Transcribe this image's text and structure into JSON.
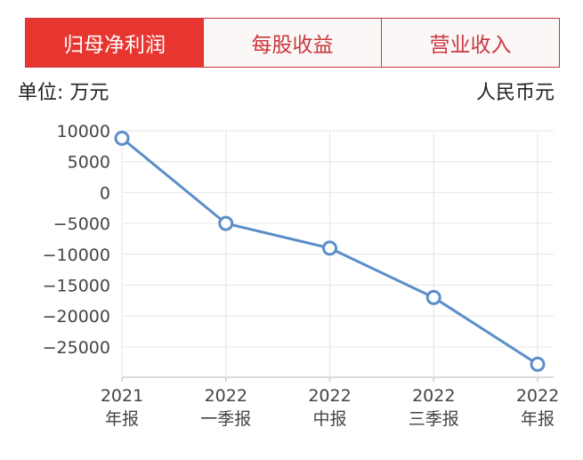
{
  "tabs": [
    {
      "label": "归母净利润",
      "active": true
    },
    {
      "label": "每股收益",
      "active": false
    },
    {
      "label": "营业收入",
      "active": false
    }
  ],
  "unit_label": "单位: 万元",
  "currency_label": "人民币元",
  "colors": {
    "accent": "#e7352f",
    "tab_border": "#c9383f",
    "line": "#5b8ec9",
    "grid": "#e6e6e6"
  },
  "chart_data": {
    "type": "line",
    "categories": [
      [
        "2021",
        "年报"
      ],
      [
        "2022",
        "一季报"
      ],
      [
        "2022",
        "中报"
      ],
      [
        "2022",
        "三季报"
      ],
      [
        "2022",
        "年报"
      ]
    ],
    "series": [
      {
        "values": [
          8800,
          -5000,
          -9000,
          -17000,
          -27800
        ]
      }
    ],
    "yticks": [
      10000,
      5000,
      0,
      -5000,
      -10000,
      -15000,
      -20000,
      -25000
    ],
    "ylim": [
      -30000,
      10000
    ],
    "grid": true,
    "legend": "none"
  }
}
